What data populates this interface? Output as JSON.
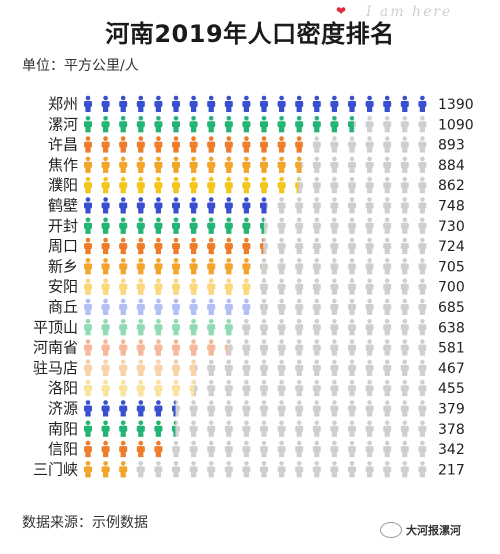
{
  "chart_data": {
    "type": "bar",
    "title": "河南2019年人口密度排名",
    "unit_label": "单位：平方公里/人",
    "source_label": "数据来源：示例数据",
    "categories": [
      "郑州",
      "漯河",
      "许昌",
      "焦作",
      "濮阳",
      "鹤壁",
      "开封",
      "周口",
      "新乡",
      "安阳",
      "商丘",
      "平顶山",
      "河南省",
      "驻马店",
      "洛阳",
      "济源",
      "南阳",
      "信阳",
      "三门峡"
    ],
    "values": [
      1390,
      1090,
      893,
      884,
      862,
      748,
      730,
      724,
      705,
      700,
      685,
      638,
      581,
      467,
      455,
      379,
      378,
      342,
      217
    ],
    "icons_per_row": 20,
    "icon_unit_value": 69.5,
    "colors": [
      "#3a4fd0",
      "#22b573",
      "#f07d2a",
      "#f5a42a",
      "#f5c518",
      "#3a4fd0",
      "#22b573",
      "#f07d2a",
      "#f5a42a",
      "#fcd77a",
      "#b3c0f5",
      "#8fdbb5",
      "#f8b79a",
      "#f9d2a8",
      "#fbe39a",
      "#3a4fd0",
      "#22b573",
      "#f07d2a",
      "#f5a42a"
    ],
    "empty_color": "#cfcfcf"
  },
  "decor": {
    "script_text": "I am here",
    "watermark_text": "大河报漯河"
  }
}
